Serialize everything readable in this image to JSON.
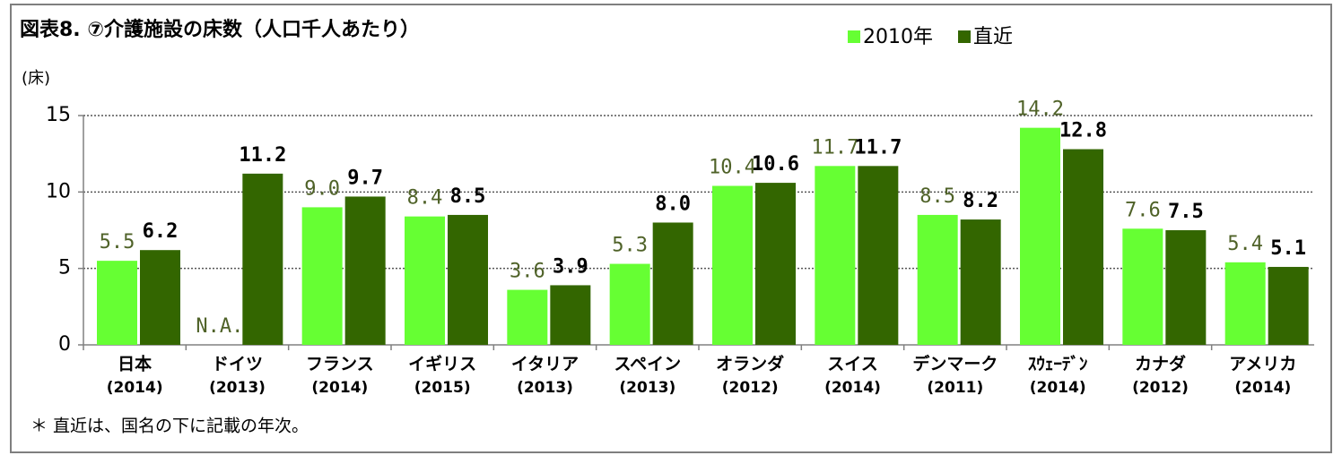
{
  "chart_data": {
    "type": "bar",
    "title": "図表8. ⑦介護施設の床数（人口千人あたり）",
    "y_label": "(床)",
    "footnote": "＊ 直近は、国名の下に記載の年次。",
    "categories": [
      "日本",
      "ドイツ",
      "フランス",
      "イギリス",
      "イタリア",
      "スペイン",
      "オランダ",
      "スイス",
      "デンマーク",
      "ｽｳｪｰﾃﾞﾝ",
      "カナダ",
      "アメリカ"
    ],
    "category_years": [
      "(2014)",
      "(2013)",
      "(2014)",
      "(2015)",
      "(2013)",
      "(2013)",
      "(2012)",
      "(2014)",
      "(2011)",
      "(2014)",
      "(2012)",
      "(2014)"
    ],
    "series": [
      {
        "name": "2010年",
        "color": "#66ff33",
        "label_color": "#4f6228",
        "values": [
          5.5,
          null,
          9.0,
          8.4,
          3.6,
          5.3,
          10.4,
          11.7,
          8.5,
          14.2,
          7.6,
          5.4
        ],
        "value_labels": [
          "5.5",
          "N.A.",
          "9.0",
          "8.4",
          "3.6",
          "5.3",
          "10.4",
          "11.7",
          "8.5",
          "14.2",
          "7.6",
          "5.4"
        ]
      },
      {
        "name": "直近",
        "color": "#336600",
        "label_color": "#000000",
        "values": [
          6.2,
          11.2,
          9.7,
          8.5,
          3.9,
          8.0,
          10.6,
          11.7,
          8.2,
          12.8,
          7.5,
          5.1
        ],
        "value_labels": [
          "6.2",
          "11.2",
          "9.7",
          "8.5",
          "3.9",
          "8.0",
          "10.6",
          "11.7",
          "8.2",
          "12.8",
          "7.5",
          "5.1"
        ]
      }
    ],
    "ylim": [
      0,
      15
    ],
    "yticks": [
      0,
      5,
      10,
      15
    ],
    "grid": true
  }
}
